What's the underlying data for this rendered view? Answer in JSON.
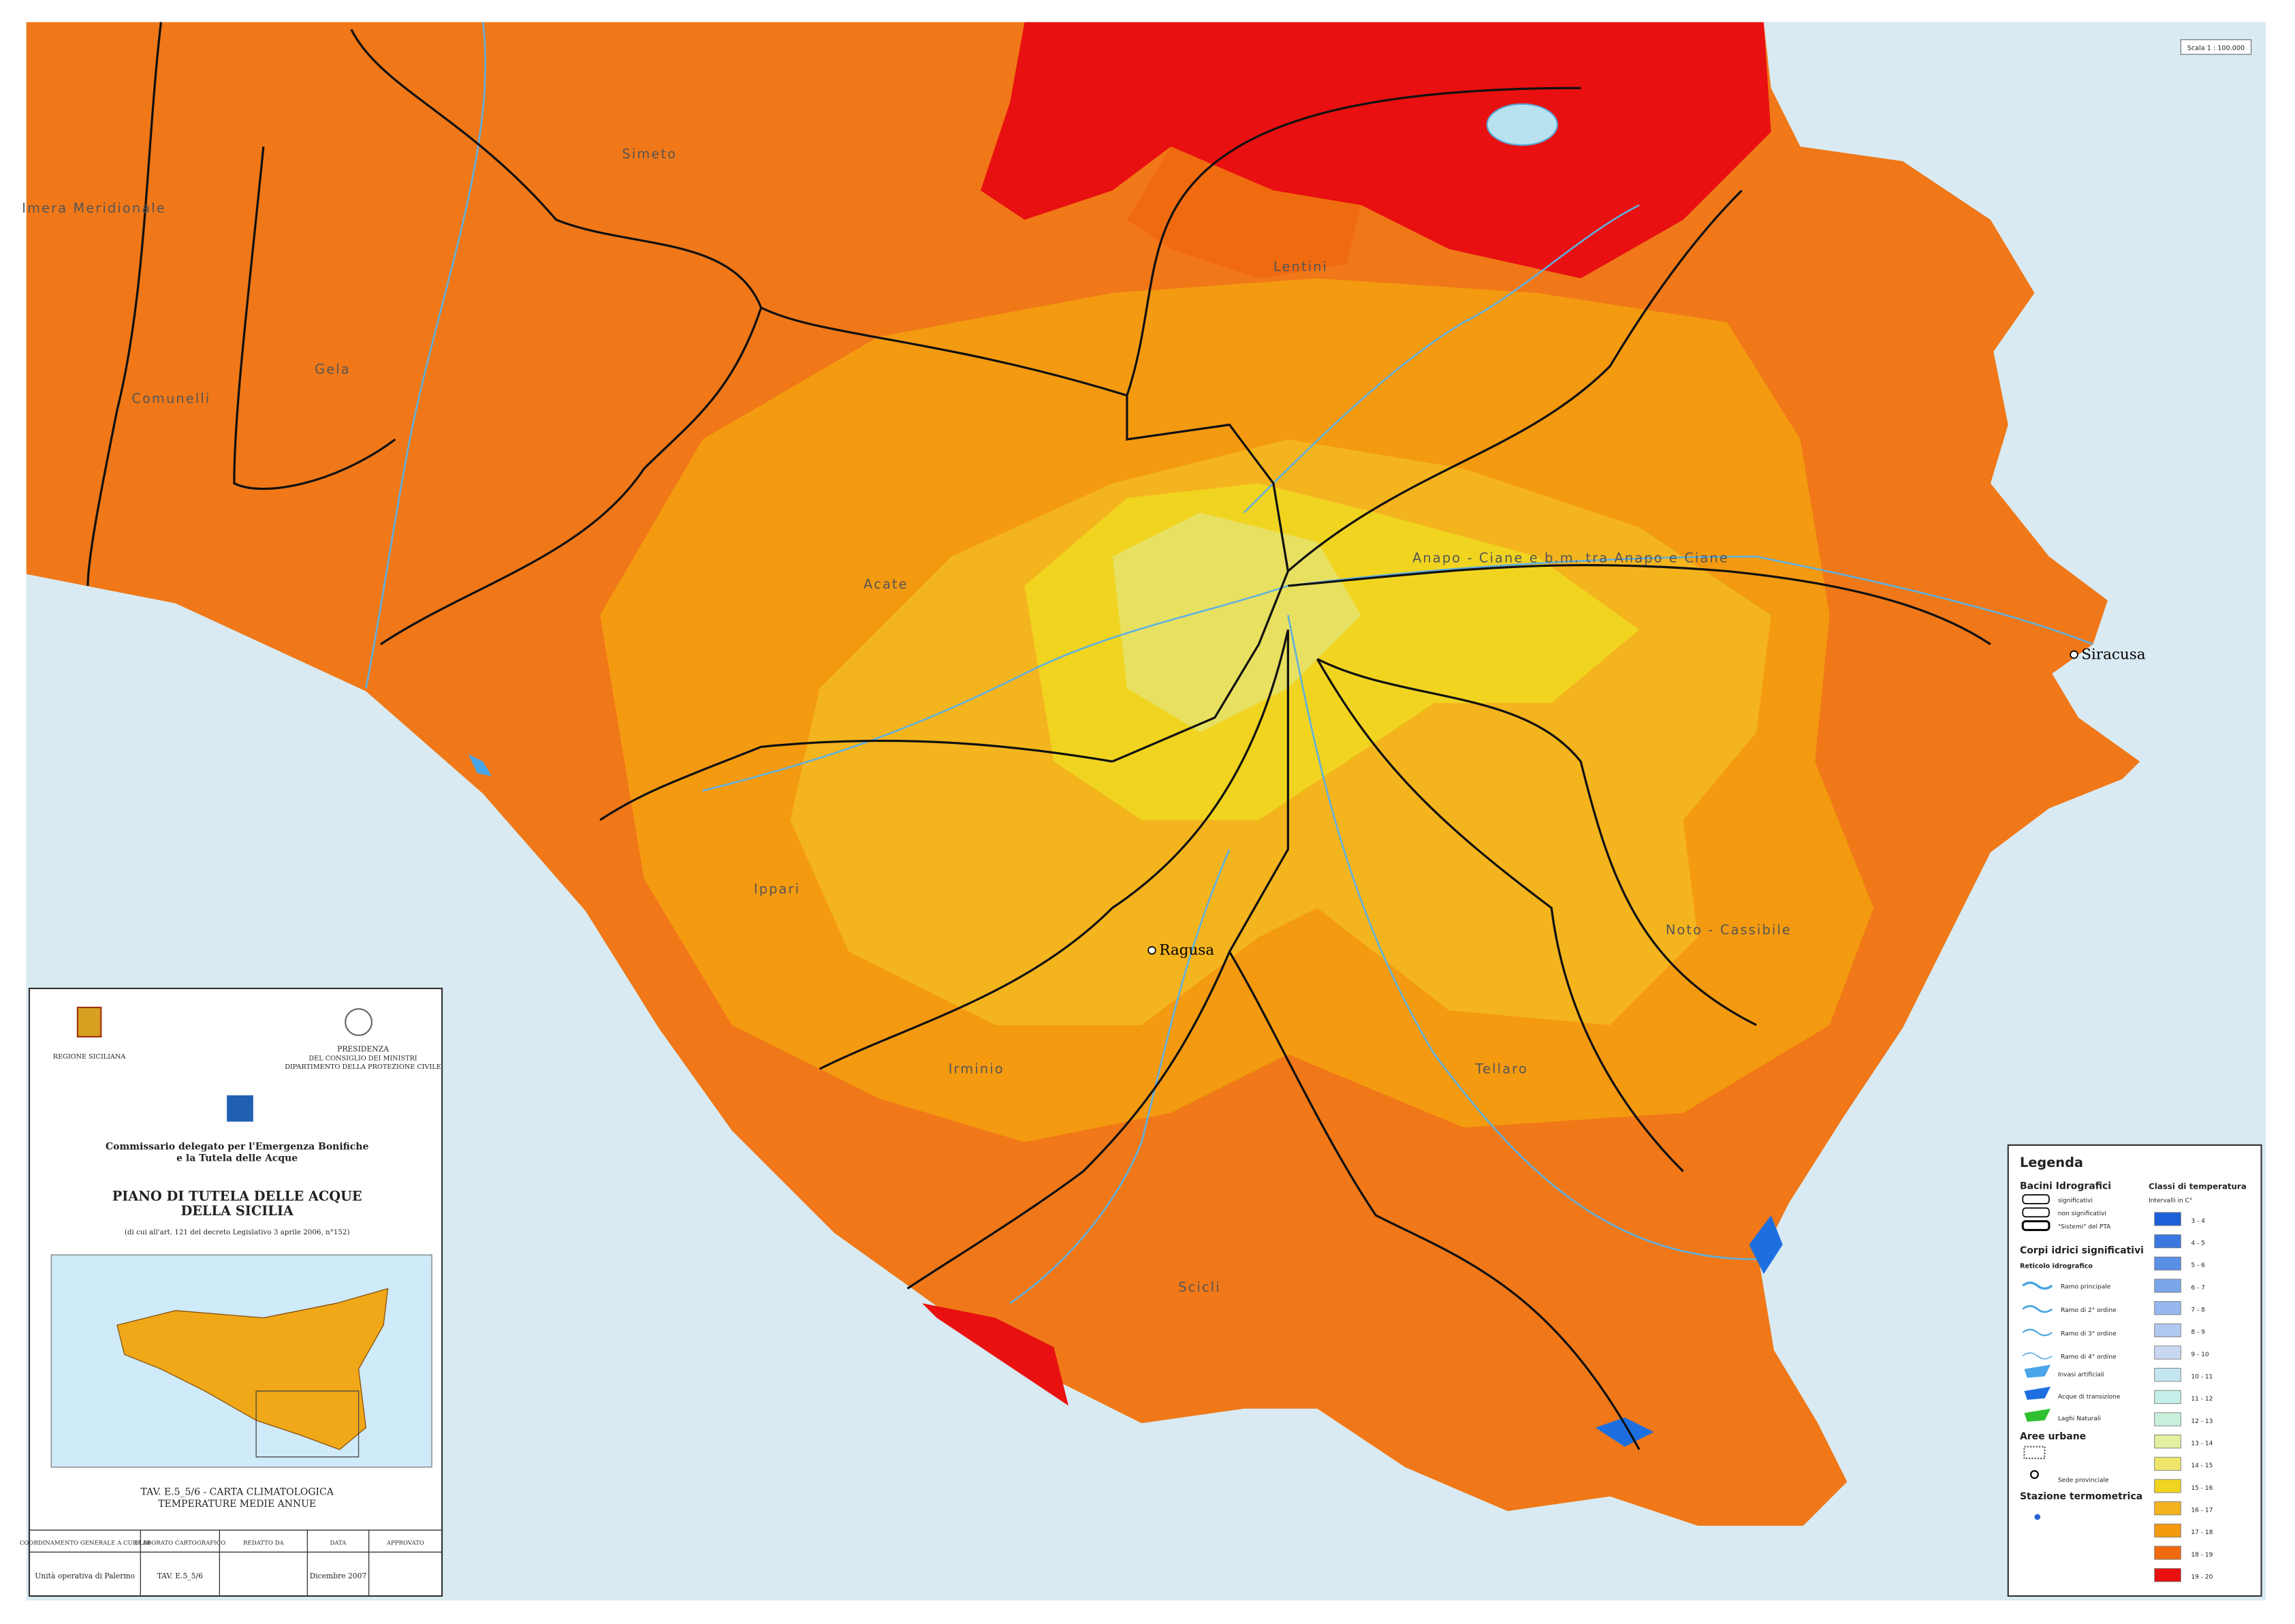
{
  "map": {
    "scale": "Scala 1 : 100.000",
    "basins": [
      "Simeto",
      "Imera Meridionale",
      "Gela",
      "Comunelli",
      "Acate",
      "Ippari",
      "Irminio",
      "Scicli",
      "Tellaro",
      "Noto - Cassibile",
      "Anapo - Ciane e b.m. tra Anapo e Ciane",
      "Lentini"
    ],
    "cities": [
      "Ragusa",
      "Siracusa"
    ]
  },
  "legend": {
    "title": "Legenda",
    "basins_heading": "Bacini Idrografici",
    "basins": [
      "significativi",
      "non significativi",
      "\"Sistemi\" del PTA"
    ],
    "water_heading": "Corpi idrici significativi",
    "network_heading": "Reticolo idrografico",
    "network": [
      "Ramo principale",
      "Ramo di 2° ordine",
      "Ramo di 3° ordine",
      "Ramo di 4° ordine"
    ],
    "water": [
      "Invasi artificiali",
      "Acque di transizione",
      "Laghi Naturali"
    ],
    "urban_heading": "Aree urbane",
    "urban": [
      "Sede provinciale"
    ],
    "station_heading": "Stazione termometrica",
    "classes_heading": "Classi di temperatura",
    "classes_unit": "Intervalli in C°",
    "classes": [
      {
        "label": "3 - 4",
        "color": "#1c5fd8"
      },
      {
        "label": "4 - 5",
        "color": "#3b77e0"
      },
      {
        "label": "5 - 6",
        "color": "#5a8fe6"
      },
      {
        "label": "6 - 7",
        "color": "#7aa6ea"
      },
      {
        "label": "7 - 8",
        "color": "#96b8ee"
      },
      {
        "label": "8 - 9",
        "color": "#b0c8f0"
      },
      {
        "label": "9 - 10",
        "color": "#c8d8f2"
      },
      {
        "label": "10 - 11",
        "color": "#c4e6f2"
      },
      {
        "label": "11 - 12",
        "color": "#c4eee8"
      },
      {
        "label": "12 - 13",
        "color": "#c8f0dc"
      },
      {
        "label": "13 - 14",
        "color": "#e2f0a0"
      },
      {
        "label": "14 - 15",
        "color": "#eee66a"
      },
      {
        "label": "15 - 16",
        "color": "#f0d420"
      },
      {
        "label": "16 - 17",
        "color": "#f4b41e"
      },
      {
        "label": "17 - 18",
        "color": "#f49a10"
      },
      {
        "label": "18 - 19",
        "color": "#f06a10"
      },
      {
        "label": "19 - 20",
        "color": "#e81010"
      }
    ]
  },
  "title_block": {
    "region": "REGIONE SICILIANA",
    "presidency": [
      "PRESIDENZA",
      "DEL CONSIGLIO DEI MINISTRI",
      "DIPARTIMENTO DELLA PROTEZIONE CIVILE"
    ],
    "commissioner": [
      "Commissario delegato per l'Emergenza Bonifiche",
      "e la Tutela delle Acque"
    ],
    "plan": [
      "PIANO DI TUTELA DELLE ACQUE",
      "DELLA SICILIA"
    ],
    "decree": "(di cui all'art. 121 del decreto Legislativo 3 aprile 2006, n°152)",
    "sheet_title": [
      "TAV. E.5_5/6 - CARTA CLIMATOLOGICA",
      "TEMPERATURE MEDIE ANNUE"
    ],
    "table_headers": [
      "COORDINAMENTO GENERALE A CURA DI",
      "ELABORATO CARTOGRAFICO",
      "REDATTO DA",
      "DATA",
      "APPROVATO"
    ],
    "table_values": [
      "Unità operativa di Palermo",
      "TAV. E.5_5/6",
      "",
      "Dicembre 2007",
      ""
    ]
  }
}
